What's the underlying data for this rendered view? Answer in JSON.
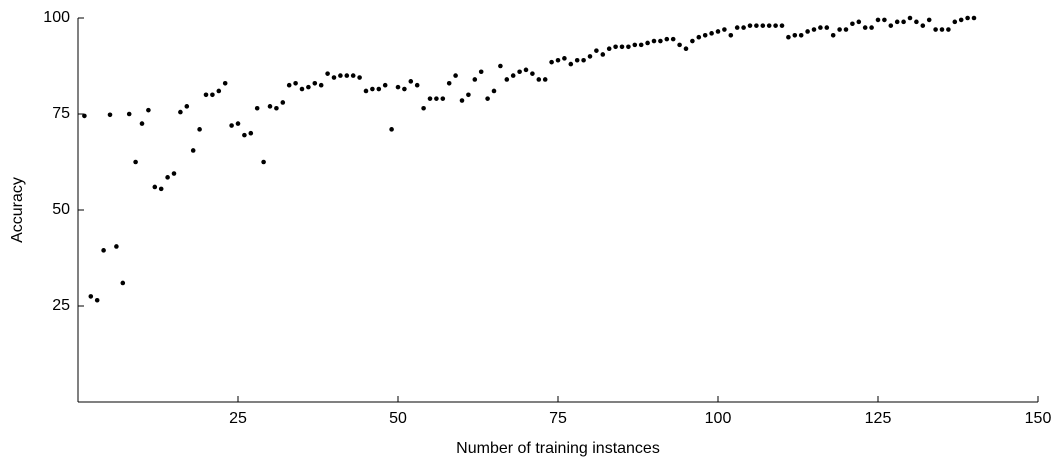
{
  "chart_data": {
    "type": "scatter",
    "xlabel": "Number of training instances",
    "ylabel": "Accuracy",
    "color": "#000000",
    "xlim": [
      0,
      150
    ],
    "xticks": [
      25,
      50,
      75,
      100,
      125,
      150
    ],
    "ylim": [
      0,
      100
    ],
    "yticks": [
      25,
      50,
      75,
      100
    ],
    "x": [
      1,
      2,
      3,
      4,
      5,
      6,
      7,
      8,
      9,
      10,
      11,
      12,
      13,
      14,
      15,
      16,
      17,
      18,
      19,
      20,
      21,
      22,
      23,
      24,
      25,
      26,
      27,
      28,
      29,
      30,
      31,
      32,
      33,
      34,
      35,
      36,
      37,
      38,
      39,
      40,
      41,
      42,
      43,
      44,
      45,
      46,
      47,
      48,
      49,
      50,
      51,
      52,
      53,
      54,
      55,
      56,
      57,
      58,
      59,
      60,
      61,
      62,
      63,
      64,
      65,
      66,
      67,
      68,
      69,
      70,
      71,
      72,
      73,
      74,
      75,
      76,
      77,
      78,
      79,
      80,
      81,
      82,
      83,
      84,
      85,
      86,
      87,
      88,
      89,
      90,
      91,
      92,
      93,
      94,
      95,
      96,
      97,
      98,
      99,
      100,
      101,
      102,
      103,
      104,
      105,
      106,
      107,
      108,
      109,
      110,
      111,
      112,
      113,
      114,
      115,
      116,
      117,
      118,
      119,
      120,
      121,
      122,
      123,
      124,
      125,
      126,
      127,
      128,
      129,
      130,
      131,
      132,
      133,
      134,
      135,
      136,
      137,
      138,
      139,
      140
    ],
    "values": [
      74.5,
      27.5,
      26.5,
      39.5,
      74.8,
      40.5,
      31,
      75,
      62.5,
      72.5,
      76,
      56,
      55.5,
      58.5,
      59.5,
      75.5,
      77,
      65.5,
      71,
      80,
      80,
      81,
      83,
      72,
      72.5,
      69.5,
      70,
      76.5,
      62.5,
      77,
      76.5,
      78,
      82.5,
      83,
      81.5,
      82,
      83,
      82.5,
      85.5,
      84.5,
      85,
      85,
      85,
      84.5,
      81,
      81.5,
      81.5,
      82.5,
      71,
      82,
      81.5,
      83.5,
      82.5,
      76.5,
      79,
      79,
      79,
      83,
      85,
      78.5,
      80,
      84,
      86,
      79,
      81,
      87.5,
      84,
      85,
      86,
      86.5,
      85.5,
      84,
      84,
      88.5,
      89,
      89.5,
      88,
      89,
      89,
      90,
      91.5,
      90.5,
      92,
      92.5,
      92.5,
      92.5,
      93,
      93,
      93.5,
      94,
      94,
      94.5,
      94.5,
      93,
      92,
      94,
      95,
      95.5,
      96,
      96.5,
      97,
      95.5,
      97.5,
      97.5,
      98,
      98,
      98,
      98,
      98,
      98,
      95,
      95.5,
      95.5,
      96.5,
      97,
      97.5,
      97.5,
      95.5,
      97,
      97,
      98.5,
      99,
      97.5,
      97.5,
      99.5,
      99.5,
      98,
      99,
      99,
      100,
      99,
      98,
      99.5,
      97,
      97,
      97,
      99,
      99.5,
      100,
      100
    ]
  }
}
